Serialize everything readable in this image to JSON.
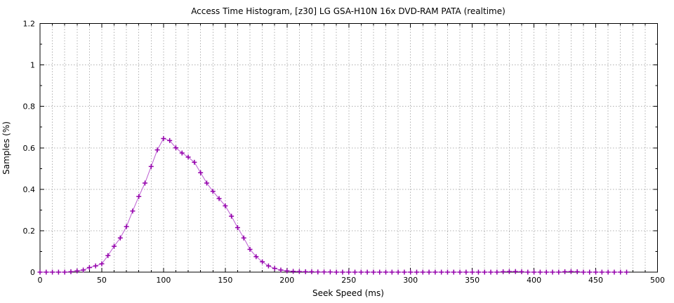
{
  "page": {
    "background": "#ffffff"
  },
  "chart_data": {
    "type": "line",
    "title": "Access Time Histogram, [z30] LG GSA-H10N 16x DVD-RAM PATA (realtime)",
    "xlabel": "Seek Speed (ms)",
    "ylabel": "Samples (%)",
    "xlim": [
      0,
      500
    ],
    "ylim": [
      0,
      1.2
    ],
    "x_tick_values": [
      0,
      50,
      100,
      150,
      200,
      250,
      300,
      350,
      400,
      450,
      500
    ],
    "x_tick_labels": [
      "0",
      "50",
      "100",
      "150",
      "200",
      "250",
      "300",
      "350",
      "400",
      "450",
      "500"
    ],
    "x_minor_step": 10,
    "y_tick_values": [
      0,
      0.2,
      0.4,
      0.6,
      0.8,
      1,
      1.2
    ],
    "y_tick_labels": [
      "0",
      "0.2",
      "0.4",
      "0.6",
      "0.8",
      "1",
      "1.2"
    ],
    "y_minor_step": 0.1,
    "grid": "dotted gray, vertical every 10 ms, horizontal every 0.2",
    "legend": "none",
    "marker": "plus",
    "line_color": "#bc5fd2",
    "marker_color": "#9400ab",
    "grid_color": "#b0b0b0",
    "border_color": "#000000",
    "series": [
      {
        "name": "samples",
        "x": [
          0,
          5,
          10,
          15,
          20,
          25,
          30,
          35,
          40,
          45,
          50,
          55,
          60,
          65,
          70,
          75,
          80,
          85,
          90,
          95,
          100,
          105,
          110,
          115,
          120,
          125,
          130,
          135,
          140,
          145,
          150,
          155,
          160,
          165,
          170,
          175,
          180,
          185,
          190,
          195,
          200,
          205,
          210,
          215,
          220,
          225,
          230,
          235,
          240,
          245,
          250,
          255,
          260,
          265,
          270,
          275,
          280,
          285,
          290,
          295,
          300,
          305,
          310,
          315,
          320,
          325,
          330,
          335,
          340,
          345,
          350,
          355,
          360,
          365,
          370,
          375,
          380,
          385,
          390,
          395,
          400,
          405,
          410,
          415,
          420,
          425,
          430,
          435,
          440,
          445,
          450,
          455,
          460,
          465,
          470,
          475
        ],
        "y": [
          0,
          0,
          0,
          0,
          0,
          0.002,
          0.006,
          0.01,
          0.022,
          0.03,
          0.04,
          0.08,
          0.125,
          0.165,
          0.22,
          0.295,
          0.365,
          0.43,
          0.51,
          0.59,
          0.645,
          0.635,
          0.6,
          0.575,
          0.555,
          0.53,
          0.48,
          0.43,
          0.39,
          0.355,
          0.32,
          0.27,
          0.215,
          0.165,
          0.11,
          0.075,
          0.05,
          0.03,
          0.018,
          0.01,
          0.006,
          0.004,
          0.003,
          0.002,
          0.002,
          0.001,
          0.001,
          0.001,
          0,
          0,
          0,
          0,
          0,
          0,
          0,
          0,
          0,
          0,
          0,
          0,
          0,
          0,
          0,
          0,
          0,
          0,
          0,
          0,
          0,
          0,
          0,
          0,
          0,
          0,
          0,
          0.002,
          0.003,
          0.003,
          0.002,
          0,
          0,
          0,
          0,
          0,
          0,
          0.002,
          0.003,
          0.002,
          0,
          0,
          0,
          0,
          0,
          0,
          0,
          0
        ]
      }
    ]
  }
}
